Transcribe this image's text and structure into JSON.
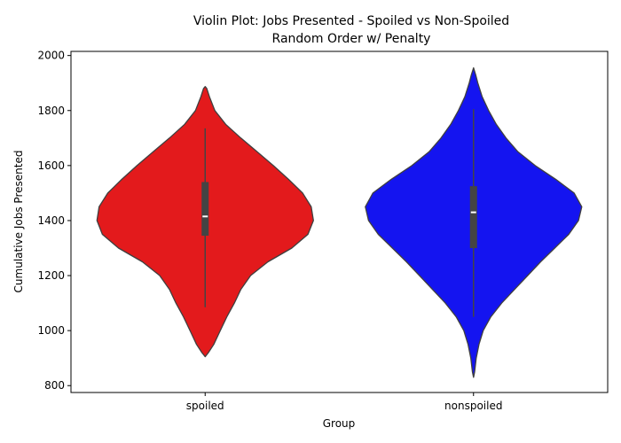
{
  "chart_data": {
    "type": "violin",
    "title_line1": "Violin Plot: Jobs Presented - Spoiled vs Non-Spoiled",
    "title_line2": "Random Order w/ Penalty",
    "xlabel": "Group",
    "ylabel": "Cumulative Jobs Presented",
    "ylim": [
      775,
      2015
    ],
    "yticks": [
      800,
      1000,
      1200,
      1400,
      1600,
      1800,
      2000
    ],
    "categories": [
      "spoiled",
      "nonspoiled"
    ],
    "series": [
      {
        "category": "spoiled",
        "color": "#e31a1c",
        "stats": {
          "whisker_low": 1085,
          "q1": 1345,
          "median": 1415,
          "q3": 1540,
          "whisker_high": 1735
        },
        "density": [
          [
            905,
            0.0
          ],
          [
            920,
            0.03
          ],
          [
            950,
            0.08
          ],
          [
            1000,
            0.14
          ],
          [
            1050,
            0.2
          ],
          [
            1100,
            0.27
          ],
          [
            1150,
            0.33
          ],
          [
            1200,
            0.42
          ],
          [
            1250,
            0.58
          ],
          [
            1300,
            0.8
          ],
          [
            1350,
            0.95
          ],
          [
            1400,
            1.0
          ],
          [
            1450,
            0.98
          ],
          [
            1500,
            0.9
          ],
          [
            1550,
            0.77
          ],
          [
            1600,
            0.63
          ],
          [
            1650,
            0.48
          ],
          [
            1700,
            0.33
          ],
          [
            1750,
            0.19
          ],
          [
            1800,
            0.09
          ],
          [
            1850,
            0.04
          ],
          [
            1880,
            0.015
          ],
          [
            1887,
            0.0
          ]
        ]
      },
      {
        "category": "nonspoiled",
        "color": "#1414f0",
        "stats": {
          "whisker_low": 1050,
          "q1": 1300,
          "median": 1430,
          "q3": 1525,
          "whisker_high": 1805
        },
        "density": [
          [
            830,
            0.0
          ],
          [
            850,
            0.01
          ],
          [
            900,
            0.025
          ],
          [
            950,
            0.05
          ],
          [
            1000,
            0.09
          ],
          [
            1050,
            0.16
          ],
          [
            1100,
            0.26
          ],
          [
            1150,
            0.38
          ],
          [
            1200,
            0.5
          ],
          [
            1250,
            0.62
          ],
          [
            1300,
            0.75
          ],
          [
            1350,
            0.88
          ],
          [
            1400,
            0.97
          ],
          [
            1450,
            1.0
          ],
          [
            1500,
            0.93
          ],
          [
            1550,
            0.76
          ],
          [
            1600,
            0.57
          ],
          [
            1650,
            0.41
          ],
          [
            1700,
            0.3
          ],
          [
            1750,
            0.21
          ],
          [
            1800,
            0.14
          ],
          [
            1850,
            0.08
          ],
          [
            1900,
            0.04
          ],
          [
            1930,
            0.02
          ],
          [
            1955,
            0.0
          ]
        ]
      }
    ]
  }
}
